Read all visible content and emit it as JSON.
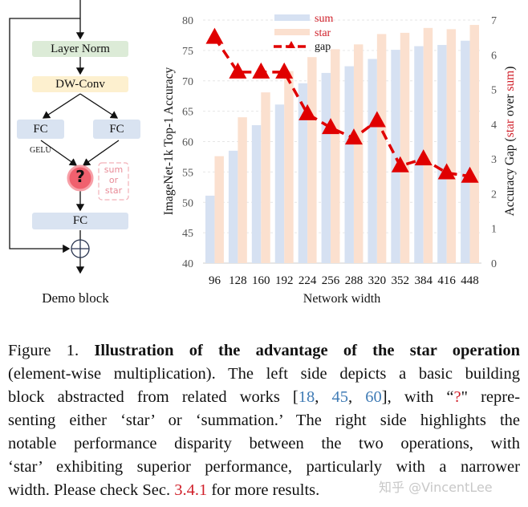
{
  "diagram": {
    "layer_norm": "Layer Norm",
    "dw_conv": "DW-Conv",
    "fc_left": "FC",
    "fc_right": "FC",
    "gelu": "GELU",
    "op_symbol": "?",
    "op_choices": [
      "sum",
      "or",
      "star"
    ],
    "fc_out": "FC",
    "caption": "Demo block",
    "colors": {
      "layer_norm": "#dcebd7",
      "dw_conv": "#fdf0cf",
      "fc": "#d9e3f1",
      "op": "#f0606e"
    }
  },
  "chart_data": {
    "type": "bar",
    "categories": [
      "96",
      "128",
      "160",
      "192",
      "224",
      "256",
      "288",
      "320",
      "352",
      "384",
      "416",
      "448"
    ],
    "series": [
      {
        "name": "sum",
        "type": "bar",
        "axis": "left",
        "color": "#d6e1f2",
        "values": [
          51.1,
          58.5,
          62.7,
          66.1,
          69.6,
          71.3,
          72.4,
          73.6,
          75.1,
          75.7,
          75.9,
          76.6
        ]
      },
      {
        "name": "star",
        "type": "bar",
        "axis": "left",
        "color": "#fbe0cf",
        "values": [
          57.6,
          64.0,
          68.1,
          71.6,
          73.9,
          75.2,
          76.0,
          77.7,
          77.9,
          78.7,
          78.5,
          79.2
        ]
      },
      {
        "name": "gap",
        "type": "line",
        "axis": "right",
        "color": "#e00000",
        "marker": "triangle",
        "dashed": true,
        "values": [
          6.5,
          5.5,
          5.5,
          5.5,
          4.3,
          3.9,
          3.6,
          4.1,
          2.8,
          3.0,
          2.6,
          2.5
        ]
      }
    ],
    "xlabel": "Network width",
    "ylabel": "ImageNet-1k Top-1 Accuracy",
    "y2label": {
      "prefix": "Accuracy Gap (",
      "star": "star",
      "mid": " over ",
      "sum": "sum",
      "suffix": ")"
    },
    "ylim": [
      40,
      80
    ],
    "yticks": [
      "40",
      "45",
      "50",
      "55",
      "60",
      "65",
      "70",
      "75",
      "80"
    ],
    "y2lim": [
      0,
      7
    ],
    "y2ticks": [
      "0",
      "1",
      "2",
      "3",
      "4",
      "5",
      "6",
      "7"
    ],
    "grid": true,
    "legend": "top-center"
  },
  "caption": {
    "l1": {
      "a": "Figure 1.  ",
      "b": "Illustration of the advantage of the star operation"
    },
    "l2": "(element-wise multiplication). The left side depicts a basic building",
    "l3": {
      "a": "block abstracted from related works [",
      "r1": "18",
      "c1": ", ",
      "r2": "45",
      "c2": ", ",
      "r3": "60",
      "b": "], with “",
      "q": "?",
      "c": "\" repre-"
    },
    "l4": "senting either ‘star’ or ‘summation.’ The right side highlights the",
    "l5": "notable performance disparity between the two operations, with",
    "l6": "‘star’ exhibiting superior performance, particularly with a narrower",
    "l7": {
      "a": "width. Please check Sec. ",
      "sec": "3.4.1",
      "b": " for more results."
    }
  },
  "watermark": "知乎 @VincentLee"
}
